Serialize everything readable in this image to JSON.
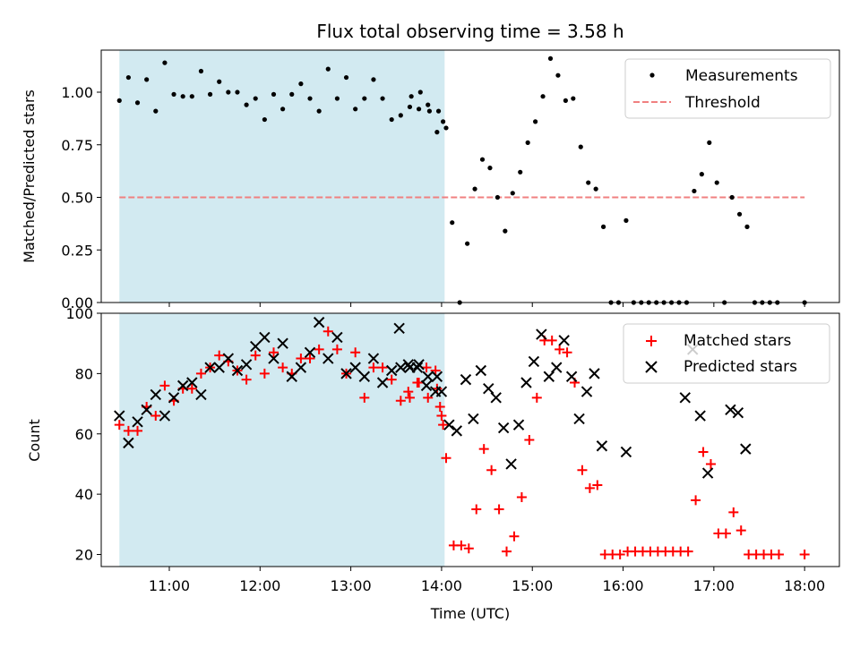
{
  "chart_data": [
    {
      "type": "scatter",
      "title": "Flux total observing time = 3.58 h",
      "xlabel": "",
      "ylabel": "Matched/Predicted stars",
      "xlim": [
        "10:15",
        "18:23"
      ],
      "ylim": [
        0,
        1.2
      ],
      "yticks": [
        "0.00",
        "0.25",
        "0.50",
        "0.75",
        "1.00"
      ],
      "shaded_region": {
        "from": "10:27",
        "to": "14:02",
        "color": "#add8e6"
      },
      "threshold": {
        "name": "Threshold",
        "value": 0.5,
        "from": "10:27",
        "to": "18:00",
        "color": "#f08080"
      },
      "legend": {
        "placement": "top-right",
        "entries": [
          "Measurements",
          "Threshold"
        ]
      },
      "series": [
        {
          "name": "Measurements",
          "color": "#000000",
          "points": [
            [
              "10:27",
              0.96
            ],
            [
              "10:33",
              1.07
            ],
            [
              "10:39",
              0.95
            ],
            [
              "10:45",
              1.06
            ],
            [
              "10:51",
              0.91
            ],
            [
              "10:57",
              1.14
            ],
            [
              "11:03",
              0.99
            ],
            [
              "11:09",
              0.98
            ],
            [
              "11:15",
              0.98
            ],
            [
              "11:21",
              1.1
            ],
            [
              "11:27",
              0.99
            ],
            [
              "11:33",
              1.05
            ],
            [
              "11:39",
              1.0
            ],
            [
              "11:45",
              1.0
            ],
            [
              "11:51",
              0.94
            ],
            [
              "11:57",
              0.97
            ],
            [
              "12:03",
              0.87
            ],
            [
              "12:09",
              0.99
            ],
            [
              "12:15",
              0.92
            ],
            [
              "12:21",
              0.99
            ],
            [
              "12:27",
              1.04
            ],
            [
              "12:33",
              0.97
            ],
            [
              "12:39",
              0.91
            ],
            [
              "12:45",
              1.11
            ],
            [
              "12:51",
              0.97
            ],
            [
              "12:57",
              1.07
            ],
            [
              "13:03",
              0.92
            ],
            [
              "13:09",
              0.97
            ],
            [
              "13:15",
              1.06
            ],
            [
              "13:21",
              0.97
            ],
            [
              "13:27",
              0.87
            ],
            [
              "13:33",
              0.89
            ],
            [
              "13:39",
              0.93
            ],
            [
              "13:45",
              0.92
            ],
            [
              "13:51",
              0.94
            ],
            [
              "13:57",
              0.81
            ],
            [
              "13:40",
              0.98
            ],
            [
              "13:46",
              1.0
            ],
            [
              "13:52",
              0.91
            ],
            [
              "13:58",
              0.91
            ],
            [
              "14:01",
              0.86
            ],
            [
              "14:03",
              0.83
            ],
            [
              "14:07",
              0.38
            ],
            [
              "14:12",
              0.0
            ],
            [
              "14:17",
              0.28
            ],
            [
              "14:22",
              0.54
            ],
            [
              "14:27",
              0.68
            ],
            [
              "14:32",
              0.64
            ],
            [
              "14:37",
              0.5
            ],
            [
              "14:42",
              0.34
            ],
            [
              "14:47",
              0.52
            ],
            [
              "14:52",
              0.62
            ],
            [
              "14:57",
              0.76
            ],
            [
              "15:02",
              0.86
            ],
            [
              "15:07",
              0.98
            ],
            [
              "15:12",
              1.16
            ],
            [
              "15:17",
              1.08
            ],
            [
              "15:22",
              0.96
            ],
            [
              "15:27",
              0.97
            ],
            [
              "15:32",
              0.74
            ],
            [
              "15:37",
              0.57
            ],
            [
              "15:42",
              0.54
            ],
            [
              "15:47",
              0.36
            ],
            [
              "15:52",
              0.0
            ],
            [
              "15:57",
              0.0
            ],
            [
              "16:02",
              0.39
            ],
            [
              "16:07",
              0.0
            ],
            [
              "16:12",
              0.0
            ],
            [
              "16:17",
              0.0
            ],
            [
              "16:22",
              0.0
            ],
            [
              "16:27",
              0.0
            ],
            [
              "16:32",
              0.0
            ],
            [
              "16:37",
              0.0
            ],
            [
              "16:42",
              0.0
            ],
            [
              "16:47",
              0.53
            ],
            [
              "16:52",
              0.61
            ],
            [
              "16:57",
              0.76
            ],
            [
              "17:02",
              0.57
            ],
            [
              "17:07",
              0.0
            ],
            [
              "17:12",
              0.5
            ],
            [
              "17:17",
              0.42
            ],
            [
              "17:22",
              0.36
            ],
            [
              "17:27",
              0.0
            ],
            [
              "17:32",
              0.0
            ],
            [
              "17:37",
              0.0
            ],
            [
              "17:42",
              0.0
            ],
            [
              "18:00",
              0.0
            ]
          ]
        }
      ]
    },
    {
      "type": "scatter",
      "title": "",
      "xlabel": "Time (UTC)",
      "ylabel": "Count",
      "xlim": [
        "10:15",
        "18:23"
      ],
      "ylim": [
        16,
        100
      ],
      "yticks": [
        "20",
        "40",
        "60",
        "80",
        "100"
      ],
      "xticks": [
        "11:00",
        "12:00",
        "13:00",
        "14:00",
        "15:00",
        "16:00",
        "17:00",
        "18:00"
      ],
      "shaded_region": {
        "from": "10:27",
        "to": "14:02",
        "color": "#add8e6"
      },
      "legend": {
        "placement": "top-right",
        "entries": [
          "Matched stars",
          "Predicted stars"
        ]
      },
      "series": [
        {
          "name": "Matched stars",
          "marker": "plus",
          "color": "#ff0000",
          "points": [
            [
              "10:27",
              63
            ],
            [
              "10:33",
              61
            ],
            [
              "10:39",
              61
            ],
            [
              "10:45",
              69
            ],
            [
              "10:51",
              66
            ],
            [
              "10:57",
              76
            ],
            [
              "11:03",
              71
            ],
            [
              "11:09",
              75
            ],
            [
              "11:15",
              75
            ],
            [
              "11:21",
              80
            ],
            [
              "11:27",
              82
            ],
            [
              "11:33",
              86
            ],
            [
              "11:39",
              84
            ],
            [
              "11:45",
              81
            ],
            [
              "11:51",
              78
            ],
            [
              "11:57",
              86
            ],
            [
              "12:03",
              80
            ],
            [
              "12:09",
              87
            ],
            [
              "12:15",
              82
            ],
            [
              "12:21",
              80
            ],
            [
              "12:27",
              85
            ],
            [
              "12:33",
              85
            ],
            [
              "12:39",
              88
            ],
            [
              "12:45",
              94
            ],
            [
              "12:51",
              88
            ],
            [
              "12:57",
              80
            ],
            [
              "13:03",
              87
            ],
            [
              "13:09",
              72
            ],
            [
              "13:15",
              82
            ],
            [
              "13:21",
              82
            ],
            [
              "13:27",
              78
            ],
            [
              "13:33",
              71
            ],
            [
              "13:39",
              72
            ],
            [
              "13:45",
              77
            ],
            [
              "13:51",
              72
            ],
            [
              "13:57",
              75
            ],
            [
              "13:38",
              74
            ],
            [
              "13:44",
              77
            ],
            [
              "13:50",
              82
            ],
            [
              "13:56",
              81
            ],
            [
              "13:59",
              69
            ],
            [
              "14:00",
              66
            ],
            [
              "14:01",
              63
            ],
            [
              "14:03",
              52
            ],
            [
              "14:08",
              23
            ],
            [
              "14:13",
              23
            ],
            [
              "14:18",
              22
            ],
            [
              "14:23",
              35
            ],
            [
              "14:28",
              55
            ],
            [
              "14:33",
              48
            ],
            [
              "14:38",
              35
            ],
            [
              "14:43",
              21
            ],
            [
              "14:48",
              26
            ],
            [
              "14:53",
              39
            ],
            [
              "14:58",
              58
            ],
            [
              "15:03",
              72
            ],
            [
              "15:08",
              91
            ],
            [
              "15:13",
              91
            ],
            [
              "15:18",
              88
            ],
            [
              "15:23",
              87
            ],
            [
              "15:28",
              77
            ],
            [
              "15:33",
              48
            ],
            [
              "15:38",
              42
            ],
            [
              "15:43",
              43
            ],
            [
              "15:48",
              20
            ],
            [
              "15:53",
              20
            ],
            [
              "15:58",
              20
            ],
            [
              "16:03",
              21
            ],
            [
              "16:08",
              21
            ],
            [
              "16:13",
              21
            ],
            [
              "16:18",
              21
            ],
            [
              "16:23",
              21
            ],
            [
              "16:28",
              21
            ],
            [
              "16:33",
              21
            ],
            [
              "16:38",
              21
            ],
            [
              "16:43",
              21
            ],
            [
              "16:48",
              38
            ],
            [
              "16:53",
              54
            ],
            [
              "16:58",
              50
            ],
            [
              "17:03",
              27
            ],
            [
              "17:08",
              27
            ],
            [
              "17:13",
              34
            ],
            [
              "17:18",
              28
            ],
            [
              "17:23",
              20
            ],
            [
              "17:28",
              20
            ],
            [
              "17:33",
              20
            ],
            [
              "17:38",
              20
            ],
            [
              "17:43",
              20
            ],
            [
              "18:00",
              20
            ]
          ]
        },
        {
          "name": "Predicted stars",
          "marker": "x",
          "color": "#000000",
          "points": [
            [
              "10:27",
              66
            ],
            [
              "10:33",
              57
            ],
            [
              "10:39",
              64
            ],
            [
              "10:45",
              68
            ],
            [
              "10:51",
              73
            ],
            [
              "10:57",
              66
            ],
            [
              "11:03",
              72
            ],
            [
              "11:09",
              76
            ],
            [
              "11:15",
              77
            ],
            [
              "11:21",
              73
            ],
            [
              "11:27",
              82
            ],
            [
              "11:33",
              82
            ],
            [
              "11:39",
              85
            ],
            [
              "11:45",
              81
            ],
            [
              "11:51",
              83
            ],
            [
              "11:57",
              89
            ],
            [
              "12:03",
              92
            ],
            [
              "12:09",
              85
            ],
            [
              "12:15",
              90
            ],
            [
              "12:21",
              79
            ],
            [
              "12:27",
              82
            ],
            [
              "12:33",
              87
            ],
            [
              "12:39",
              97
            ],
            [
              "12:45",
              85
            ],
            [
              "12:51",
              92
            ],
            [
              "12:57",
              80
            ],
            [
              "13:03",
              82
            ],
            [
              "13:09",
              79
            ],
            [
              "13:15",
              85
            ],
            [
              "13:21",
              77
            ],
            [
              "13:27",
              81
            ],
            [
              "13:33",
              82
            ],
            [
              "13:39",
              82
            ],
            [
              "13:45",
              83
            ],
            [
              "13:51",
              79
            ],
            [
              "13:57",
              79
            ],
            [
              "13:32",
              95
            ],
            [
              "13:38",
              83
            ],
            [
              "13:44",
              82
            ],
            [
              "13:50",
              76
            ],
            [
              "13:56",
              74
            ],
            [
              "14:00",
              74
            ],
            [
              "14:05",
              63
            ],
            [
              "14:10",
              61
            ],
            [
              "14:16",
              78
            ],
            [
              "14:21",
              65
            ],
            [
              "14:26",
              81
            ],
            [
              "14:31",
              75
            ],
            [
              "14:36",
              72
            ],
            [
              "14:41",
              62
            ],
            [
              "14:46",
              50
            ],
            [
              "14:51",
              63
            ],
            [
              "14:56",
              77
            ],
            [
              "15:01",
              84
            ],
            [
              "15:06",
              93
            ],
            [
              "15:11",
              79
            ],
            [
              "15:16",
              82
            ],
            [
              "15:21",
              91
            ],
            [
              "15:26",
              79
            ],
            [
              "15:31",
              65
            ],
            [
              "15:36",
              74
            ],
            [
              "15:41",
              80
            ],
            [
              "15:46",
              56
            ],
            [
              "16:02",
              54
            ],
            [
              "16:41",
              72
            ],
            [
              "16:46",
              88
            ],
            [
              "16:51",
              66
            ],
            [
              "16:56",
              47
            ],
            [
              "17:11",
              68
            ],
            [
              "17:16",
              67
            ],
            [
              "17:21",
              55
            ]
          ]
        }
      ]
    }
  ]
}
